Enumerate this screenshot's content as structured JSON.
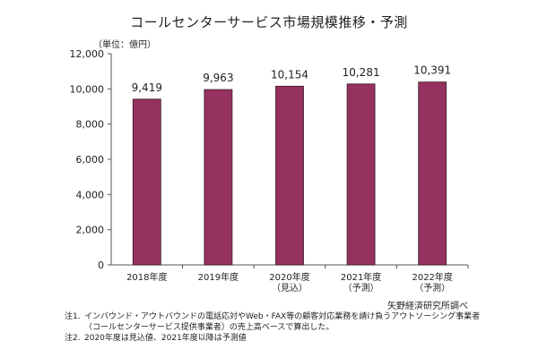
{
  "title": "コールセンターサービス市場規模推移・予測",
  "unit_label": "（単位：億円）",
  "source": "矢野経済研究所調べ",
  "notes": [
    {
      "label": "注1.",
      "lines": [
        "インバウンド・アウトバウンドの電話応対やWeb・FAX等の顧客対応業務を請け負うアウトソーシング事業者",
        "（コールセンターサービス提供事業者）の売上高ベースで算出した。"
      ]
    },
    {
      "label": "注2.",
      "lines": [
        "2020年度は見込値、2021年度以降は予測値"
      ]
    }
  ],
  "chart_data": {
    "type": "bar",
    "categories": [
      [
        "2018年度"
      ],
      [
        "2019年度"
      ],
      [
        "2020年度",
        "（見込）"
      ],
      [
        "2021年度",
        "（予測）"
      ],
      [
        "2022年度",
        "（予測）"
      ]
    ],
    "values": [
      9419,
      9963,
      10154,
      10281,
      10391
    ],
    "value_labels": [
      "9,419",
      "9,963",
      "10,154",
      "10,281",
      "10,391"
    ],
    "ylim": [
      0,
      12000
    ],
    "yticks": [
      0,
      2000,
      4000,
      6000,
      8000,
      10000,
      12000
    ],
    "ytick_labels": [
      "0",
      "2,000",
      "4,000",
      "6,000",
      "8,000",
      "10,000",
      "12,000"
    ],
    "grid": false,
    "bar_color": "#95325f"
  }
}
